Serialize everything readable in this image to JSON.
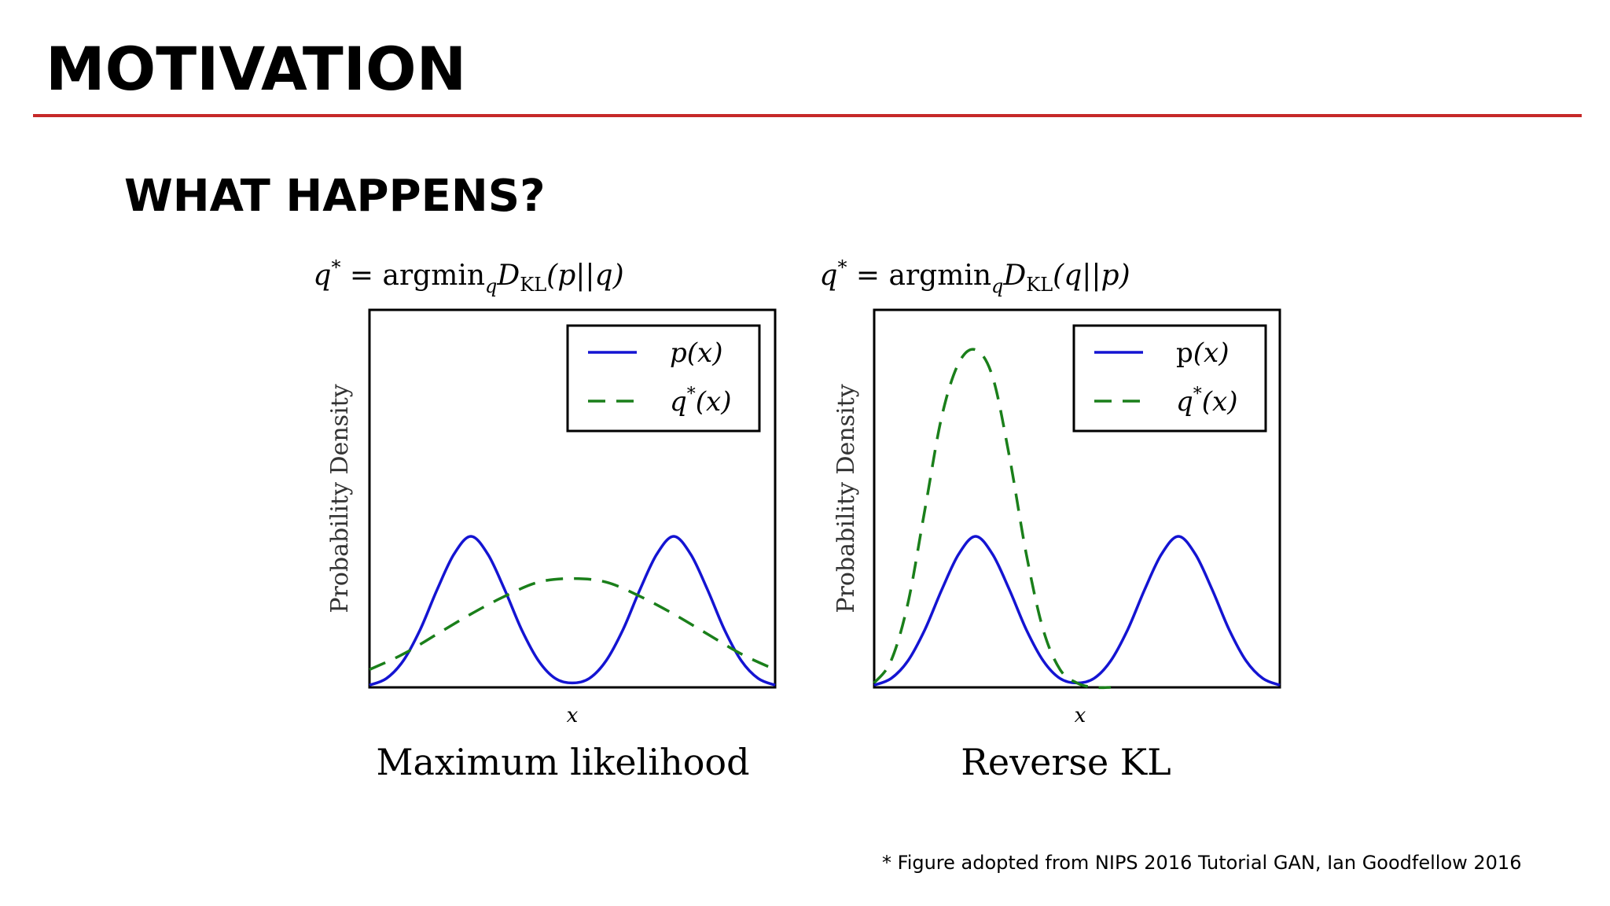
{
  "slide": {
    "title": "MOTIVATION",
    "heading": "WHAT HAPPENS?",
    "footnote": "* Figure adopted from NIPS 2016 Tutorial GAN, Ian Goodfellow 2016",
    "accent_color": "#c62828"
  },
  "chart_data": [
    {
      "type": "line",
      "title_parts": {
        "q": "q",
        "star": "*",
        "eq": " = argmin",
        "sub_q": "q",
        "D": "D",
        "sub_kl": "KL",
        "args": "(p||q)"
      },
      "xlabel": "x",
      "ylabel": "Probability Density",
      "caption": "Maximum likelihood",
      "xlim": [
        -6,
        6
      ],
      "ylim": [
        0,
        0.85
      ],
      "grid": false,
      "legend_placement": "top-right",
      "legend": [
        {
          "label_main": "p",
          "label_sup": "",
          "label_arg": "(x)",
          "style": "solid",
          "color": "#1414d2"
        },
        {
          "label_main": "q",
          "label_sup": "*",
          "label_arg": "(x)",
          "style": "dashed",
          "color": "#1a7f1a"
        }
      ],
      "series": [
        {
          "name": "p(x)",
          "style": "solid",
          "color": "#1414d2",
          "x": [
            -6,
            -5.5,
            -5,
            -4.5,
            -4,
            -3.5,
            -3,
            -2.5,
            -2,
            -1.5,
            -1,
            -0.5,
            0,
            0.5,
            1,
            1.5,
            2,
            2.5,
            3,
            3.5,
            4,
            4.5,
            5,
            5.5,
            6
          ],
          "y": [
            0.005,
            0.02,
            0.06,
            0.13,
            0.22,
            0.3,
            0.34,
            0.3,
            0.22,
            0.13,
            0.06,
            0.02,
            0.01,
            0.02,
            0.06,
            0.13,
            0.22,
            0.3,
            0.34,
            0.3,
            0.22,
            0.13,
            0.06,
            0.02,
            0.005
          ]
        },
        {
          "name": "q*(x)",
          "style": "dashed",
          "color": "#1a7f1a",
          "x": [
            -6,
            -5,
            -4,
            -3,
            -2,
            -1,
            0,
            1,
            2,
            3,
            4,
            5,
            6
          ],
          "y": [
            0.04,
            0.075,
            0.12,
            0.165,
            0.205,
            0.237,
            0.245,
            0.237,
            0.205,
            0.165,
            0.12,
            0.075,
            0.04
          ]
        }
      ]
    },
    {
      "type": "line",
      "title_parts": {
        "q": "q",
        "star": "*",
        "eq": " = argmin",
        "sub_q": "q",
        "D": "D",
        "sub_kl": "KL",
        "args": "(q||p)"
      },
      "xlabel": "x",
      "ylabel": "Probability Density",
      "caption": "Reverse KL",
      "xlim": [
        -6,
        6
      ],
      "ylim": [
        0,
        0.85
      ],
      "grid": false,
      "legend_placement": "top-right",
      "legend": [
        {
          "label_main": "p",
          "label_sup": "",
          "label_arg": "(x)",
          "style": "solid",
          "color": "#1414d2"
        },
        {
          "label_main": "q",
          "label_sup": "*",
          "label_arg": "(x)",
          "style": "dashed",
          "color": "#1a7f1a"
        }
      ],
      "series": [
        {
          "name": "p(x)",
          "style": "solid",
          "color": "#1414d2",
          "x": [
            -6,
            -5.5,
            -5,
            -4.5,
            -4,
            -3.5,
            -3,
            -2.5,
            -2,
            -1.5,
            -1,
            -0.5,
            0,
            0.5,
            1,
            1.5,
            2,
            2.5,
            3,
            3.5,
            4,
            4.5,
            5,
            5.5,
            6
          ],
          "y": [
            0.005,
            0.02,
            0.06,
            0.13,
            0.22,
            0.3,
            0.34,
            0.3,
            0.22,
            0.13,
            0.06,
            0.02,
            0.01,
            0.02,
            0.06,
            0.13,
            0.22,
            0.3,
            0.34,
            0.3,
            0.22,
            0.13,
            0.06,
            0.02,
            0.005
          ]
        },
        {
          "name": "q*(x)",
          "style": "dashed",
          "color": "#1a7f1a",
          "x": [
            -6,
            -5.5,
            -5,
            -4.5,
            -4,
            -3.5,
            -3,
            -2.5,
            -2,
            -1.5,
            -1,
            -0.5,
            0,
            0.5,
            1
          ],
          "y": [
            0.01,
            0.06,
            0.19,
            0.4,
            0.61,
            0.73,
            0.76,
            0.7,
            0.52,
            0.3,
            0.13,
            0.04,
            0.01,
            0.0,
            0.0
          ]
        }
      ]
    }
  ]
}
